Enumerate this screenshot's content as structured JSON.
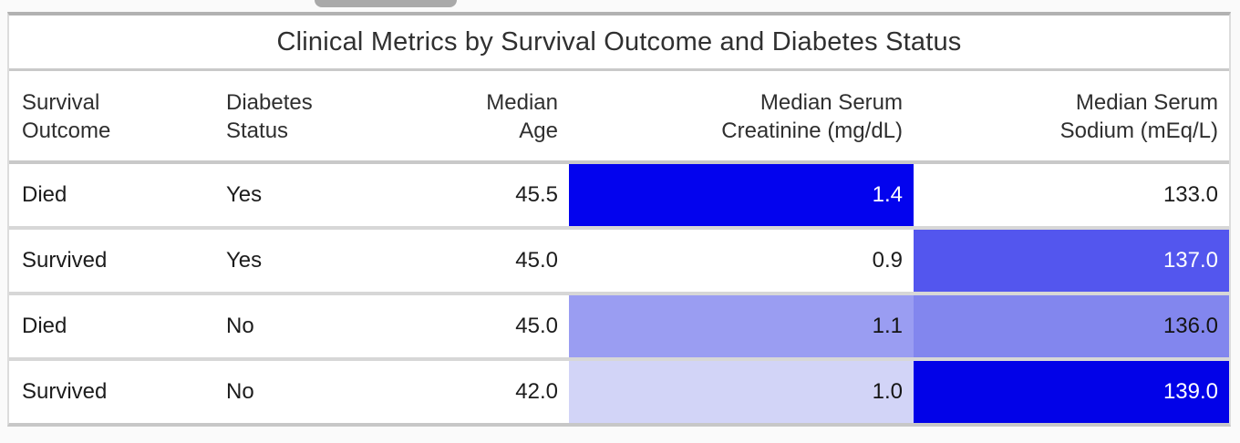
{
  "page": {
    "background": "#fafafa"
  },
  "table": {
    "title": "Clinical Metrics by Survival Outcome and Diabetes Status",
    "columns": [
      {
        "line1": "Survival",
        "line2": "Outcome",
        "align": "left"
      },
      {
        "line1": "Diabetes",
        "line2": "Status",
        "align": "left"
      },
      {
        "line1": "Median",
        "line2": "Age",
        "align": "right"
      },
      {
        "line1": "Median Serum",
        "line2": "Creatinine (mg/dL)",
        "align": "right"
      },
      {
        "line1": "Median Serum",
        "line2": "Sodium (mEq/L)",
        "align": "right"
      }
    ],
    "rows": [
      {
        "survival": "Died",
        "diabetes": "Yes",
        "age": "45.5",
        "creatinine": {
          "value": "1.4",
          "bg": "#0303ee",
          "color": "#ffffff"
        },
        "sodium": {
          "value": "133.0",
          "bg": "#ffffff",
          "color": "#1c1c1c"
        }
      },
      {
        "survival": "Survived",
        "diabetes": "Yes",
        "age": "45.0",
        "creatinine": {
          "value": "0.9",
          "bg": "#ffffff",
          "color": "#1c1c1c"
        },
        "sodium": {
          "value": "137.0",
          "bg": "#5356ee",
          "color": "#ffffff"
        }
      },
      {
        "survival": "Died",
        "diabetes": "No",
        "age": "45.0",
        "creatinine": {
          "value": "1.1",
          "bg": "#9a9df2",
          "color": "#141414"
        },
        "sodium": {
          "value": "136.0",
          "bg": "#8286ee",
          "color": "#141414"
        }
      },
      {
        "survival": "Survived",
        "diabetes": "No",
        "age": "42.0",
        "creatinine": {
          "value": "1.0",
          "bg": "#d2d4f7",
          "color": "#141414"
        },
        "sodium": {
          "value": "139.0",
          "bg": "#0202e8",
          "color": "#ffffff"
        }
      }
    ]
  },
  "colors": {
    "heatmap_max_blue": "#0303ee",
    "heatmap_min": "#ffffff",
    "card_border": "#b2b2b2",
    "row_separator": "#d7d7d7"
  },
  "chart_data": {
    "type": "table",
    "title": "Clinical Metrics by Survival Outcome and Diabetes Status",
    "columns": [
      "Survival Outcome",
      "Diabetes Status",
      "Median Age",
      "Median Serum Creatinine (mg/dL)",
      "Median Serum Sodium (mEq/L)"
    ],
    "rows": [
      [
        "Died",
        "Yes",
        45.5,
        1.4,
        133.0
      ],
      [
        "Survived",
        "Yes",
        45.0,
        0.9,
        137.0
      ],
      [
        "Died",
        "No",
        45.0,
        1.1,
        136.0
      ],
      [
        "Survived",
        "No",
        42.0,
        1.0,
        139.0
      ]
    ],
    "heatmap_columns": [
      "Median Serum Creatinine (mg/dL)",
      "Median Serum Sodium (mEq/L)"
    ],
    "heatmap_scale": "per-column: white at column minimum to saturated blue #0303ee at column maximum",
    "legend_position": "none",
    "grid": false
  }
}
